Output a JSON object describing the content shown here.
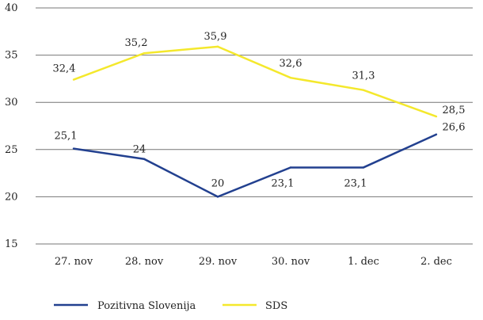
{
  "chart_data": {
    "type": "line",
    "title": "",
    "xlabel": "",
    "ylabel": "",
    "categories": [
      "27. nov",
      "28. nov",
      "29. nov",
      "30. nov",
      "1. dec",
      "2. dec"
    ],
    "yticks": [
      "15",
      "20",
      "25",
      "30",
      "35",
      "40"
    ],
    "ylim": [
      15,
      40
    ],
    "grid": "horizontal",
    "legend_position": "bottom",
    "series": [
      {
        "name": "Pozitivna Slovenija",
        "color": "#22408f",
        "values": [
          25.1,
          24,
          20,
          23.1,
          23.1,
          26.6
        ],
        "labels": [
          "25,1",
          "24",
          "20",
          "23,1",
          "23,1",
          "26,6"
        ]
      },
      {
        "name": "SDS",
        "color": "#f4e82c",
        "values": [
          32.4,
          35.2,
          35.9,
          32.6,
          31.3,
          28.5
        ],
        "labels": [
          "32,4",
          "35,2",
          "35,9",
          "32,6",
          "31,3",
          "28,5"
        ]
      }
    ]
  }
}
